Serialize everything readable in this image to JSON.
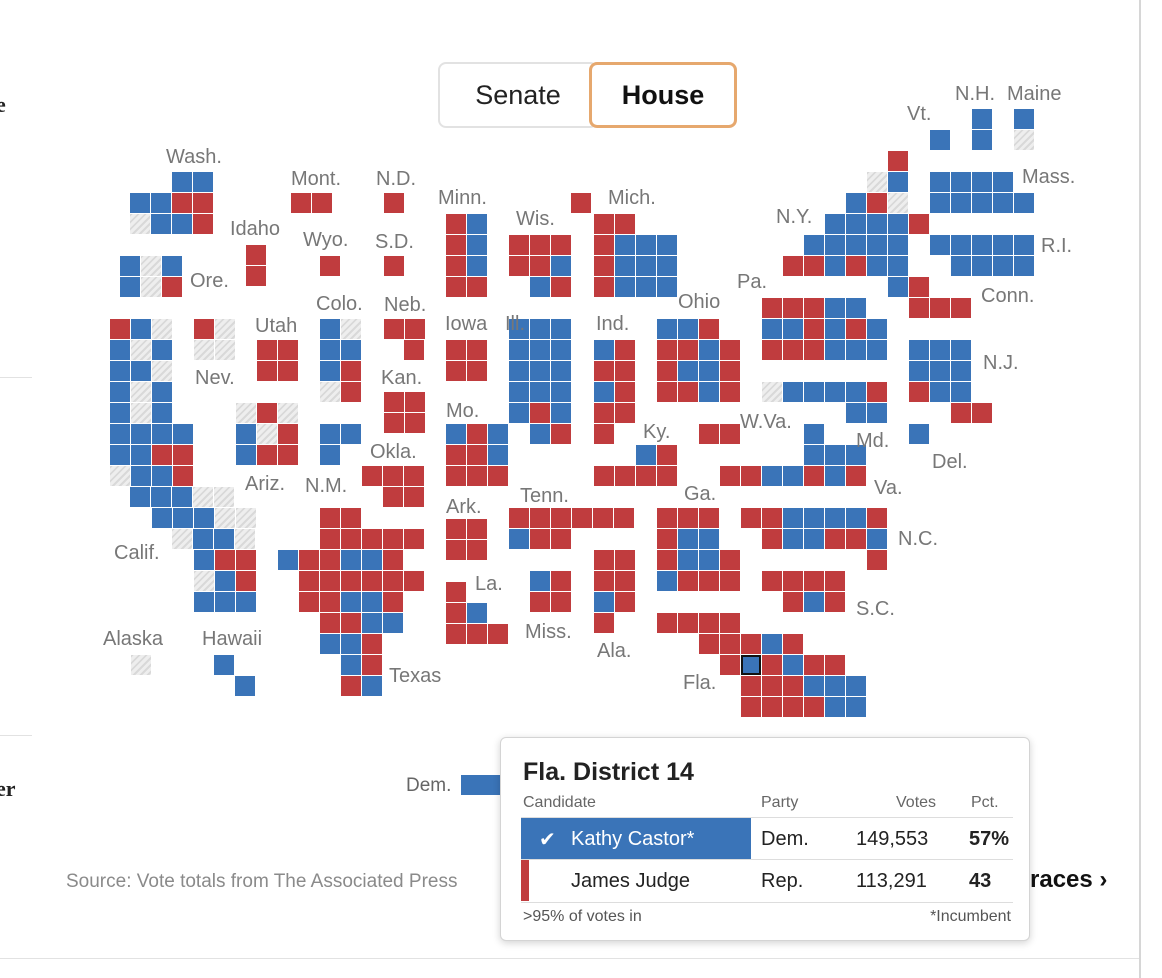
{
  "page": {
    "edge_glyph_top": "e",
    "edge_glyph_bottom": "er"
  },
  "toggle": {
    "options": [
      "Senate",
      "House"
    ],
    "selected": "House"
  },
  "map": {
    "colors": {
      "dem": "#3a74b8",
      "rep": "#c03c3e",
      "uncalled": "#d9d9d9"
    },
    "state_labels": [
      "Wash.",
      "Mont.",
      "N.D.",
      "Minn.",
      "Mich.",
      "Wis.",
      "N.Y.",
      "Vt.",
      "N.H.",
      "Maine",
      "Mass.",
      "R.I.",
      "Idaho",
      "Wyo.",
      "S.D.",
      "Ore.",
      "Colo.",
      "Neb.",
      "Iowa",
      "Ill.",
      "Ind.",
      "Ohio",
      "Pa.",
      "Conn.",
      "Utah",
      "Nev.",
      "Kan.",
      "Mo.",
      "Ky.",
      "W.Va.",
      "N.J.",
      "Md.",
      "Del.",
      "Okla.",
      "Ariz.",
      "N.M.",
      "Ark.",
      "Tenn.",
      "Ga.",
      "Va.",
      "N.C.",
      "Calif.",
      "La.",
      "Miss.",
      "Ala.",
      "S.C.",
      "Alaska",
      "Hawaii",
      "Texas",
      "Fla."
    ]
  },
  "legend": {
    "dem_label": "Dem."
  },
  "source": "Source: Vote totals from The Associated Press",
  "all_races_link": "races ›",
  "tooltip": {
    "title": "Fla. District 14",
    "headers": {
      "candidate": "Candidate",
      "party": "Party",
      "votes": "Votes",
      "pct": "Pct."
    },
    "rows": [
      {
        "name": "Kathy Castor*",
        "party": "Dem.",
        "votes": "149,553",
        "pct": "57%",
        "winner": true
      },
      {
        "name": "James Judge",
        "party": "Rep.",
        "votes": "113,291",
        "pct": "43",
        "winner": false
      }
    ],
    "reporting": ">95% of votes in",
    "note": "*Incumbent"
  }
}
